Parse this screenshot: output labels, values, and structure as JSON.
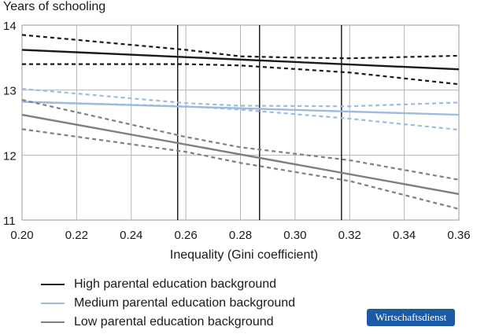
{
  "chart_data": {
    "type": "line",
    "ylabel": "Years of schooling",
    "xlabel": "Inequality (Gini coefficient)",
    "xlim": [
      0.2,
      0.36
    ],
    "ylim": [
      11,
      14
    ],
    "x_ticks": [
      "0.20",
      "0.22",
      "0.24",
      "0.26",
      "0.28",
      "0.30",
      "0.32",
      "0.34",
      "0.36"
    ],
    "y_ticks": [
      "11",
      "12",
      "13",
      "14"
    ],
    "grid": true,
    "reference_lines_x": [
      0.257,
      0.287,
      0.317
    ],
    "legend_position": "bottom-left",
    "series": [
      {
        "name": "High parental education background",
        "color": "#1a1a1a",
        "x": [
          0.2,
          0.36
        ],
        "y": [
          13.62,
          13.32
        ],
        "ci_lower": [
          [
            0.2,
            13.4
          ],
          [
            0.26,
            13.4
          ],
          [
            0.28,
            13.38
          ],
          [
            0.32,
            13.27
          ],
          [
            0.36,
            13.09
          ]
        ],
        "ci_upper": [
          [
            0.2,
            13.85
          ],
          [
            0.26,
            13.62
          ],
          [
            0.28,
            13.52
          ],
          [
            0.3,
            13.5
          ],
          [
            0.32,
            13.49
          ],
          [
            0.36,
            13.53
          ]
        ]
      },
      {
        "name": "Medium parental education background",
        "color": "#9dbbe0",
        "x": [
          0.2,
          0.36
        ],
        "y": [
          12.82,
          12.62
        ],
        "ci_lower": [
          [
            0.2,
            12.82
          ],
          [
            0.26,
            12.75
          ],
          [
            0.28,
            12.7
          ],
          [
            0.32,
            12.56
          ],
          [
            0.36,
            12.39
          ]
        ],
        "ci_upper": [
          [
            0.2,
            13.02
          ],
          [
            0.26,
            12.8
          ],
          [
            0.28,
            12.76
          ],
          [
            0.32,
            12.75
          ],
          [
            0.36,
            12.81
          ]
        ]
      },
      {
        "name": "Low parental education background",
        "color": "#7f7f7f",
        "x": [
          0.2,
          0.36
        ],
        "y": [
          12.62,
          11.4
        ],
        "ci_lower": [
          [
            0.2,
            12.4
          ],
          [
            0.26,
            12.05
          ],
          [
            0.28,
            11.88
          ],
          [
            0.32,
            11.6
          ],
          [
            0.36,
            11.17
          ]
        ],
        "ci_upper": [
          [
            0.2,
            12.85
          ],
          [
            0.26,
            12.28
          ],
          [
            0.28,
            12.12
          ],
          [
            0.32,
            11.92
          ],
          [
            0.36,
            11.62
          ]
        ]
      }
    ]
  },
  "badge": {
    "text": "Wirtschaftsdienst",
    "color": "#1d5aa6"
  }
}
